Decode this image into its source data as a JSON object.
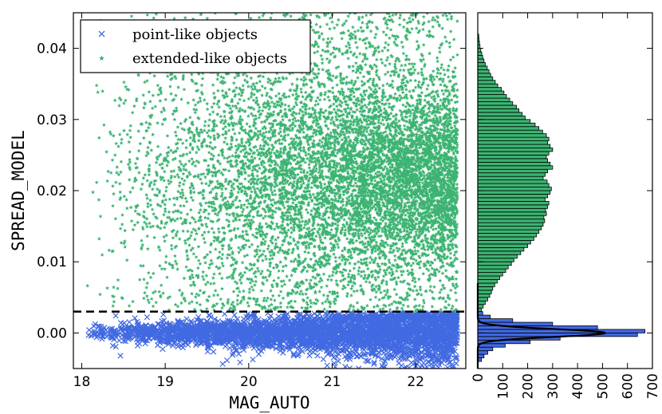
{
  "chart_data": [
    {
      "type": "scatter",
      "xlabel": "MAG_AUTO",
      "ylabel": "SPREAD_MODEL",
      "xlim": [
        17.9,
        22.6
      ],
      "ylim": [
        -0.005,
        0.045
      ],
      "xticks": [
        "18",
        "19",
        "20",
        "21",
        "22"
      ],
      "yticks": [
        "0.00",
        "0.01",
        "0.02",
        "0.03",
        "0.04"
      ],
      "grid": false,
      "legend_position": "top-left",
      "series": [
        {
          "name": "point-like objects",
          "marker": "x",
          "color": "#4169e1",
          "band": {
            "x_range": [
              18.0,
              22.5
            ],
            "y_center": 0.0,
            "y_spread_at_x18": 0.0007,
            "y_spread_at_x22_5": 0.0025
          }
        },
        {
          "name": "extended-like objects",
          "marker": "star",
          "color": "#3cb371",
          "band": {
            "x_range": [
              18.0,
              22.5
            ],
            "y_min": 0.003,
            "y_max": 0.045,
            "y_mode": 0.022
          }
        }
      ],
      "threshold_line": {
        "y": 0.003,
        "style": "dashed",
        "color": "#000000"
      }
    },
    {
      "type": "bar",
      "orientation": "horizontal",
      "xlim": [
        0,
        700
      ],
      "xticks": [
        "0",
        "100",
        "200",
        "300",
        "400",
        "500",
        "600",
        "700"
      ],
      "ylim": [
        -0.005,
        0.045
      ],
      "series": [
        {
          "name": "extended-like objects",
          "color": "#3cb371",
          "bins": [
            [
              0.003,
              15
            ],
            [
              0.0035,
              22
            ],
            [
              0.004,
              30
            ],
            [
              0.0045,
              40
            ],
            [
              0.005,
              48
            ],
            [
              0.0055,
              55
            ],
            [
              0.006,
              60
            ],
            [
              0.0065,
              68
            ],
            [
              0.007,
              78
            ],
            [
              0.0075,
              88
            ],
            [
              0.008,
              100
            ],
            [
              0.0085,
              112
            ],
            [
              0.009,
              122
            ],
            [
              0.0095,
              135
            ],
            [
              0.01,
              145
            ],
            [
              0.0105,
              158
            ],
            [
              0.011,
              172
            ],
            [
              0.0115,
              185
            ],
            [
              0.012,
              200
            ],
            [
              0.0125,
              212
            ],
            [
              0.013,
              225
            ],
            [
              0.0135,
              235
            ],
            [
              0.014,
              245
            ],
            [
              0.0145,
              255
            ],
            [
              0.015,
              262
            ],
            [
              0.0155,
              268
            ],
            [
              0.016,
              265
            ],
            [
              0.0165,
              275
            ],
            [
              0.017,
              272
            ],
            [
              0.0175,
              280
            ],
            [
              0.018,
              285
            ],
            [
              0.0185,
              270
            ],
            [
              0.019,
              280
            ],
            [
              0.0195,
              290
            ],
            [
              0.02,
              295
            ],
            [
              0.0205,
              285
            ],
            [
              0.021,
              278
            ],
            [
              0.0215,
              262
            ],
            [
              0.022,
              270
            ],
            [
              0.0225,
              280
            ],
            [
              0.023,
              300
            ],
            [
              0.0235,
              290
            ],
            [
              0.024,
              280
            ],
            [
              0.0245,
              275
            ],
            [
              0.025,
              285
            ],
            [
              0.0255,
              300
            ],
            [
              0.026,
              290
            ],
            [
              0.0265,
              280
            ],
            [
              0.027,
              285
            ],
            [
              0.0275,
              275
            ],
            [
              0.028,
              260
            ],
            [
              0.0285,
              245
            ],
            [
              0.029,
              230
            ],
            [
              0.0295,
              210
            ],
            [
              0.03,
              190
            ],
            [
              0.0305,
              178
            ],
            [
              0.031,
              165
            ],
            [
              0.0315,
              155
            ],
            [
              0.032,
              140
            ],
            [
              0.0325,
              128
            ],
            [
              0.033,
              115
            ],
            [
              0.0335,
              105
            ],
            [
              0.034,
              95
            ],
            [
              0.0345,
              80
            ],
            [
              0.035,
              70
            ],
            [
              0.0355,
              60
            ],
            [
              0.036,
              52
            ],
            [
              0.0365,
              45
            ],
            [
              0.037,
              38
            ],
            [
              0.0375,
              30
            ],
            [
              0.038,
              25
            ],
            [
              0.0385,
              20
            ],
            [
              0.039,
              16
            ],
            [
              0.0395,
              12
            ],
            [
              0.04,
              9
            ],
            [
              0.0405,
              7
            ],
            [
              0.041,
              5
            ],
            [
              0.0415,
              4
            ]
          ]
        },
        {
          "name": "point-like objects",
          "color": "#4169e1",
          "bins": [
            [
              -0.004,
              15
            ],
            [
              -0.0035,
              25
            ],
            [
              -0.003,
              40
            ],
            [
              -0.0025,
              60
            ],
            [
              -0.002,
              110
            ],
            [
              -0.0015,
              210
            ],
            [
              -0.001,
              330
            ],
            [
              -0.0005,
              640
            ],
            [
              0.0,
              670
            ],
            [
              0.0005,
              480
            ],
            [
              0.001,
              300
            ],
            [
              0.0015,
              140
            ],
            [
              0.002,
              50
            ],
            [
              0.0025,
              20
            ]
          ]
        }
      ],
      "fit_curve": {
        "type": "gaussian",
        "peak": 510,
        "mean": 0.0,
        "sigma": 0.00055,
        "color": "#000000"
      }
    }
  ]
}
